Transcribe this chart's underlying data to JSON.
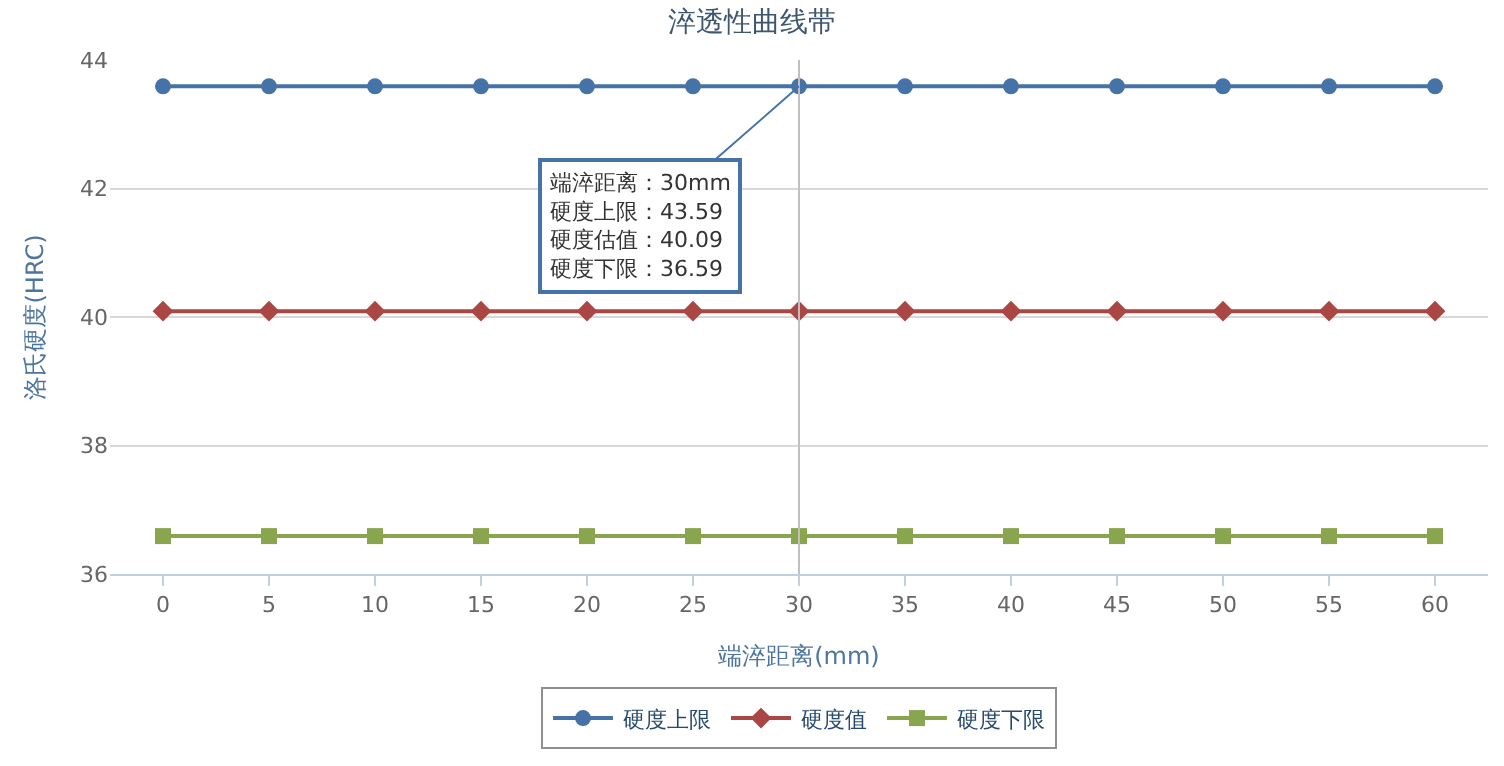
{
  "chart_data": {
    "type": "line",
    "title": "淬透性曲线带",
    "xlabel": "端淬距离(mm)",
    "ylabel": "洛氏硬度(HRC)",
    "x": [
      0,
      5,
      10,
      15,
      20,
      25,
      30,
      35,
      40,
      45,
      50,
      55,
      60
    ],
    "series": [
      {
        "name": "硬度上限",
        "color": "#4572a7",
        "marker": "circle",
        "values": [
          43.59,
          43.59,
          43.59,
          43.59,
          43.59,
          43.59,
          43.59,
          43.59,
          43.59,
          43.59,
          43.59,
          43.59,
          43.59
        ]
      },
      {
        "name": "硬度值",
        "color": "#aa4643",
        "marker": "diamond",
        "values": [
          40.09,
          40.09,
          40.09,
          40.09,
          40.09,
          40.09,
          40.09,
          40.09,
          40.09,
          40.09,
          40.09,
          40.09,
          40.09
        ]
      },
      {
        "name": "硬度下限",
        "color": "#89a54e",
        "marker": "square",
        "values": [
          36.59,
          36.59,
          36.59,
          36.59,
          36.59,
          36.59,
          36.59,
          36.59,
          36.59,
          36.59,
          36.59,
          36.59,
          36.59
        ]
      }
    ],
    "xlim": [
      -2.5,
      62.5
    ],
    "xticks": [
      0,
      5,
      10,
      15,
      20,
      25,
      30,
      35,
      40,
      45,
      50,
      55,
      60
    ],
    "ylim": [
      36,
      44
    ],
    "yticks": [
      36,
      38,
      40,
      42,
      44
    ],
    "grid": "y",
    "legend": "bottom",
    "line_style": "solid",
    "ref_lines": [
      {
        "axis": "x",
        "value": 30,
        "label": null,
        "color": "#c0c0c0"
      }
    ],
    "annotations": [
      {
        "text": "端淬距离：30mm\n硬度上限：43.59\n硬度估值：40.09\n硬度下限：36.59",
        "x": 30,
        "y": 43.59
      }
    ]
  }
}
